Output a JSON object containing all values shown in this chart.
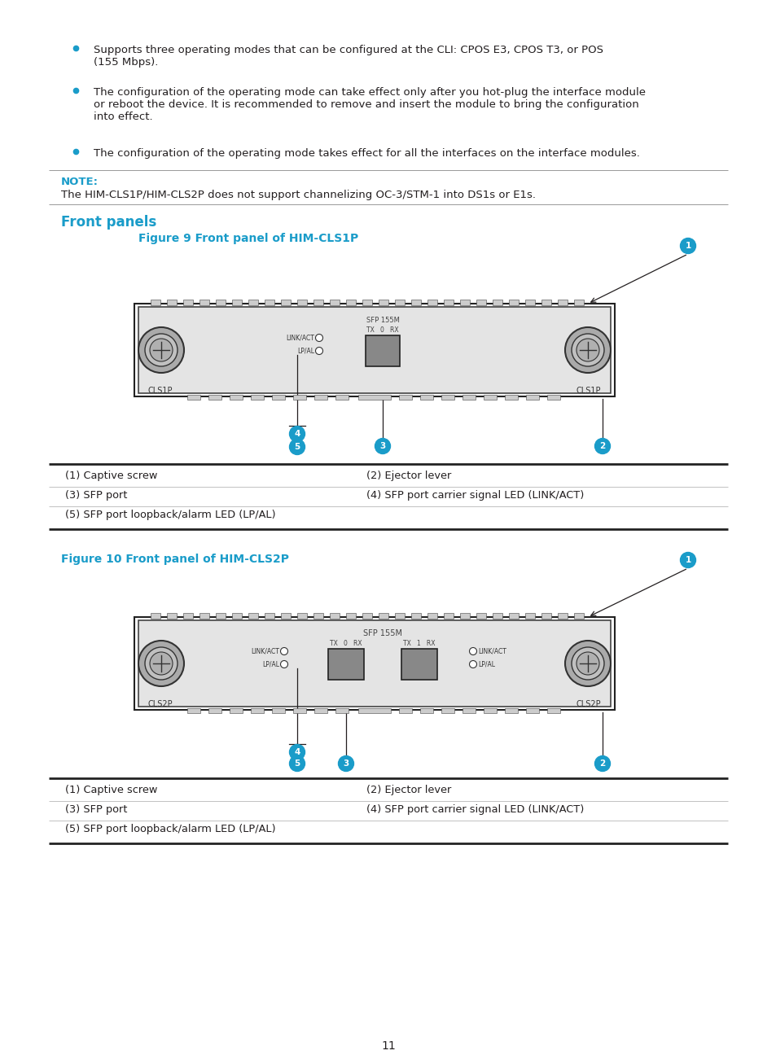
{
  "bg_color": "#ffffff",
  "text_color": "#231f20",
  "cyan_color": "#1a9cc9",
  "bullet1": "Supports three operating modes that can be configured at the CLI: CPOS E3, CPOS T3, or POS\n(155 Mbps).",
  "bullet2": "The configuration of the operating mode can take effect only after you hot-plug the interface module\nor reboot the device. It is recommended to remove and insert the module to bring the configuration\ninto effect.",
  "bullet3": "The configuration of the operating mode takes effect for all the interfaces on the interface modules.",
  "note_label": "NOTE:",
  "note_text": "The HIM-CLS1P/HIM-CLS2P does not support channelizing OC-3/STM-1 into DS1s or E1s.",
  "section_title": "Front panels",
  "fig1_title": "Figure 9 Front panel of HIM-CLS1P",
  "fig2_title": "Figure 10 Front panel of HIM-CLS2P",
  "table1_rows": [
    [
      "(1) Captive screw",
      "(2) Ejector lever"
    ],
    [
      "(3) SFP port",
      "(4) SFP port carrier signal LED (LINK/ACT)"
    ],
    [
      "(5) SFP port loopback/alarm LED (LP/AL)",
      ""
    ]
  ],
  "table2_rows": [
    [
      "(1) Captive screw",
      "(2) Ejector lever"
    ],
    [
      "(3) SFP port",
      "(4) SFP port carrier signal LED (LINK/ACT)"
    ],
    [
      "(5) SFP port loopback/alarm LED (LP/AL)",
      ""
    ]
  ],
  "page_number": "11",
  "panel_bg": "#e4e4e4",
  "panel_border": "#444444",
  "sfp_color": "#888888",
  "tooth_color": "#cccccc",
  "screw_outer": "#c8c8c8",
  "screw_inner": "#b8b8b8"
}
